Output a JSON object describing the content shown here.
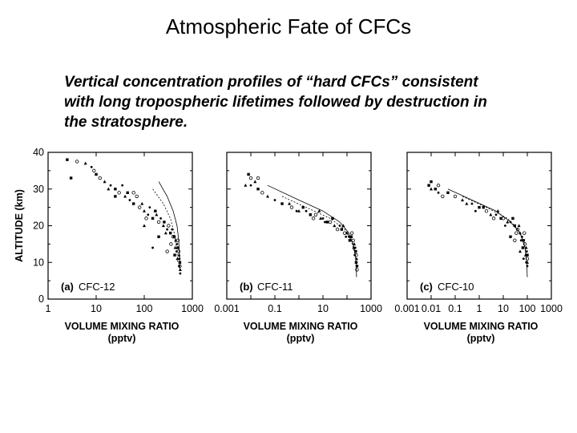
{
  "slide": {
    "title": "Atmospheric Fate of CFCs",
    "caption_lines": [
      "Vertical concentration profiles of “hard CFCs” consistent",
      "with long tropospheric lifetimes followed by destruction in",
      "the stratosphere."
    ]
  },
  "colors": {
    "ink": "#000000",
    "background": "#ffffff"
  },
  "chart_data": [
    {
      "type": "scatter",
      "panel_label": "(a)",
      "species": "CFC-12",
      "xscale": "log",
      "xlim": [
        1,
        1000
      ],
      "x_tick_labels": [
        "1",
        "10",
        "100",
        "1000"
      ],
      "x_tick_values": [
        1,
        10,
        100,
        1000
      ],
      "ylim": [
        0,
        40
      ],
      "y_tick_labels": [
        "0",
        "10",
        "20",
        "30",
        "40"
      ],
      "y_tick_values": [
        0,
        10,
        20,
        30,
        40
      ],
      "ylabel": "ALTITUDE (km)",
      "xlabel": "VOLUME MIXING RATIO",
      "xunit": "(pptv)",
      "points": [
        [
          2.5,
          38
        ],
        [
          4,
          37.5
        ],
        [
          6,
          37
        ],
        [
          8,
          36
        ],
        [
          10,
          34
        ],
        [
          12,
          33
        ],
        [
          15,
          32
        ],
        [
          20,
          31
        ],
        [
          25,
          30
        ],
        [
          30,
          29
        ],
        [
          40,
          28
        ],
        [
          50,
          27
        ],
        [
          60,
          26
        ],
        [
          80,
          25
        ],
        [
          100,
          24
        ],
        [
          120,
          23
        ],
        [
          150,
          22
        ],
        [
          200,
          21
        ],
        [
          250,
          20
        ],
        [
          300,
          19
        ],
        [
          350,
          18
        ],
        [
          400,
          17
        ],
        [
          450,
          16
        ],
        [
          480,
          15
        ],
        [
          500,
          14
        ],
        [
          520,
          13
        ],
        [
          530,
          12
        ],
        [
          540,
          11
        ],
        [
          550,
          10
        ],
        [
          550,
          9
        ],
        [
          560,
          8
        ],
        [
          560,
          7
        ],
        [
          3,
          33
        ],
        [
          9,
          35
        ],
        [
          18,
          30
        ],
        [
          35,
          31
        ],
        [
          45,
          29
        ],
        [
          70,
          28
        ],
        [
          90,
          26
        ],
        [
          130,
          25
        ],
        [
          170,
          24
        ],
        [
          110,
          22
        ],
        [
          180,
          23
        ],
        [
          220,
          22
        ],
        [
          260,
          21
        ],
        [
          320,
          20
        ],
        [
          280,
          18
        ],
        [
          380,
          19
        ],
        [
          420,
          17
        ],
        [
          360,
          15
        ],
        [
          440,
          14
        ],
        [
          470,
          13
        ],
        [
          430,
          12
        ],
        [
          500,
          16
        ],
        [
          490,
          11
        ],
        [
          530,
          9
        ],
        [
          25,
          28
        ],
        [
          60,
          29
        ],
        [
          100,
          20
        ],
        [
          150,
          14
        ],
        [
          200,
          17
        ],
        [
          300,
          13
        ]
      ],
      "model_curves": [
        [
          [
            200,
            32
          ],
          [
            300,
            28
          ],
          [
            400,
            24
          ],
          [
            480,
            20
          ],
          [
            520,
            16
          ],
          [
            540,
            12
          ],
          [
            550,
            8
          ]
        ],
        [
          [
            150,
            30
          ],
          [
            250,
            26
          ],
          [
            350,
            22
          ],
          [
            420,
            18
          ],
          [
            470,
            14
          ],
          [
            500,
            10
          ]
        ]
      ]
    },
    {
      "type": "scatter",
      "panel_label": "(b)",
      "species": "CFC-11",
      "xscale": "log",
      "xlim": [
        0.001,
        1000
      ],
      "x_tick_labels": [
        "0.001",
        "0.1",
        "10",
        "1000"
      ],
      "x_tick_values": [
        0.001,
        0.1,
        10,
        1000
      ],
      "ylim": [
        0,
        40
      ],
      "ylabel": "ALTITUDE (km)",
      "xlabel": "VOLUME MIXING RATIO",
      "xunit": "(pptv)",
      "points": [
        [
          0.008,
          34
        ],
        [
          0.01,
          33
        ],
        [
          0.015,
          32
        ],
        [
          0.01,
          31
        ],
        [
          0.02,
          30
        ],
        [
          0.03,
          29
        ],
        [
          0.05,
          28
        ],
        [
          0.1,
          27
        ],
        [
          0.2,
          26
        ],
        [
          0.5,
          25
        ],
        [
          1,
          24
        ],
        [
          2,
          24
        ],
        [
          3,
          23
        ],
        [
          5,
          23
        ],
        [
          8,
          22
        ],
        [
          10,
          22
        ],
        [
          15,
          21
        ],
        [
          20,
          21
        ],
        [
          30,
          20
        ],
        [
          50,
          20
        ],
        [
          60,
          19
        ],
        [
          80,
          18
        ],
        [
          100,
          18
        ],
        [
          120,
          17
        ],
        [
          150,
          17
        ],
        [
          180,
          16
        ],
        [
          200,
          15
        ],
        [
          220,
          14
        ],
        [
          230,
          13
        ],
        [
          240,
          12
        ],
        [
          250,
          11
        ],
        [
          250,
          10
        ],
        [
          260,
          9
        ],
        [
          260,
          8
        ],
        [
          0.4,
          26
        ],
        [
          0.8,
          24
        ],
        [
          1.5,
          25
        ],
        [
          4,
          22
        ],
        [
          7,
          24
        ],
        [
          12,
          21
        ],
        [
          25,
          22
        ],
        [
          40,
          19
        ],
        [
          70,
          20
        ],
        [
          90,
          17
        ],
        [
          130,
          16
        ],
        [
          160,
          18
        ],
        [
          190,
          14
        ],
        [
          210,
          12
        ],
        [
          240,
          10
        ],
        [
          0.02,
          33
        ],
        [
          0.006,
          31
        ]
      ],
      "model_curves": [
        [
          [
            0.05,
            31
          ],
          [
            1,
            27
          ],
          [
            10,
            24
          ],
          [
            50,
            21
          ],
          [
            120,
            18
          ],
          [
            200,
            14
          ],
          [
            240,
            10
          ],
          [
            250,
            6
          ]
        ],
        [
          [
            0.2,
            28
          ],
          [
            2,
            25
          ],
          [
            20,
            22
          ],
          [
            80,
            19
          ],
          [
            150,
            16
          ],
          [
            220,
            12
          ]
        ]
      ]
    },
    {
      "type": "scatter",
      "panel_label": "(c)",
      "species": "CFC-10",
      "xscale": "log",
      "xlim": [
        0.001,
        1000
      ],
      "x_tick_labels": [
        "0.001",
        "0.01",
        "0.1",
        "1",
        "10",
        "100",
        "1000"
      ],
      "x_tick_values": [
        0.001,
        0.01,
        0.1,
        1,
        10,
        100,
        1000
      ],
      "ylim": [
        0,
        40
      ],
      "ylabel": "ALTITUDE (km)",
      "xlabel": "VOLUME MIXING RATIO",
      "xunit": "(pptv)",
      "points": [
        [
          0.01,
          32
        ],
        [
          0.02,
          31
        ],
        [
          0.01,
          30
        ],
        [
          0.02,
          29
        ],
        [
          0.05,
          29
        ],
        [
          0.1,
          28
        ],
        [
          0.2,
          27
        ],
        [
          0.5,
          26
        ],
        [
          1,
          25
        ],
        [
          2,
          24
        ],
        [
          3,
          23
        ],
        [
          5,
          23
        ],
        [
          8,
          22
        ],
        [
          10,
          22
        ],
        [
          15,
          21
        ],
        [
          20,
          21
        ],
        [
          30,
          20
        ],
        [
          40,
          19
        ],
        [
          50,
          18
        ],
        [
          60,
          17
        ],
        [
          70,
          16
        ],
        [
          80,
          15
        ],
        [
          90,
          14
        ],
        [
          95,
          13
        ],
        [
          100,
          12
        ],
        [
          100,
          11
        ],
        [
          100,
          10
        ],
        [
          100,
          9
        ],
        [
          0.015,
          30
        ],
        [
          0.03,
          28
        ],
        [
          0.3,
          26
        ],
        [
          0.7,
          24
        ],
        [
          1.5,
          25
        ],
        [
          4,
          22
        ],
        [
          6,
          24
        ],
        [
          12,
          20
        ],
        [
          25,
          22
        ],
        [
          35,
          18
        ],
        [
          45,
          20
        ],
        [
          55,
          16
        ],
        [
          65,
          14
        ],
        [
          75,
          18
        ],
        [
          85,
          12
        ],
        [
          90,
          10
        ],
        [
          20,
          17
        ],
        [
          30,
          16
        ],
        [
          50,
          13
        ],
        [
          70,
          11
        ],
        [
          0.008,
          31
        ]
      ],
      "model_curves": [
        [
          [
            0.05,
            30
          ],
          [
            0.5,
            27
          ],
          [
            5,
            24
          ],
          [
            20,
            21
          ],
          [
            50,
            18
          ],
          [
            80,
            14
          ],
          [
            95,
            10
          ],
          [
            100,
            6
          ]
        ],
        [
          [
            0.2,
            28
          ],
          [
            2,
            25
          ],
          [
            15,
            22
          ],
          [
            40,
            19
          ],
          [
            70,
            16
          ],
          [
            90,
            12
          ]
        ]
      ]
    }
  ]
}
